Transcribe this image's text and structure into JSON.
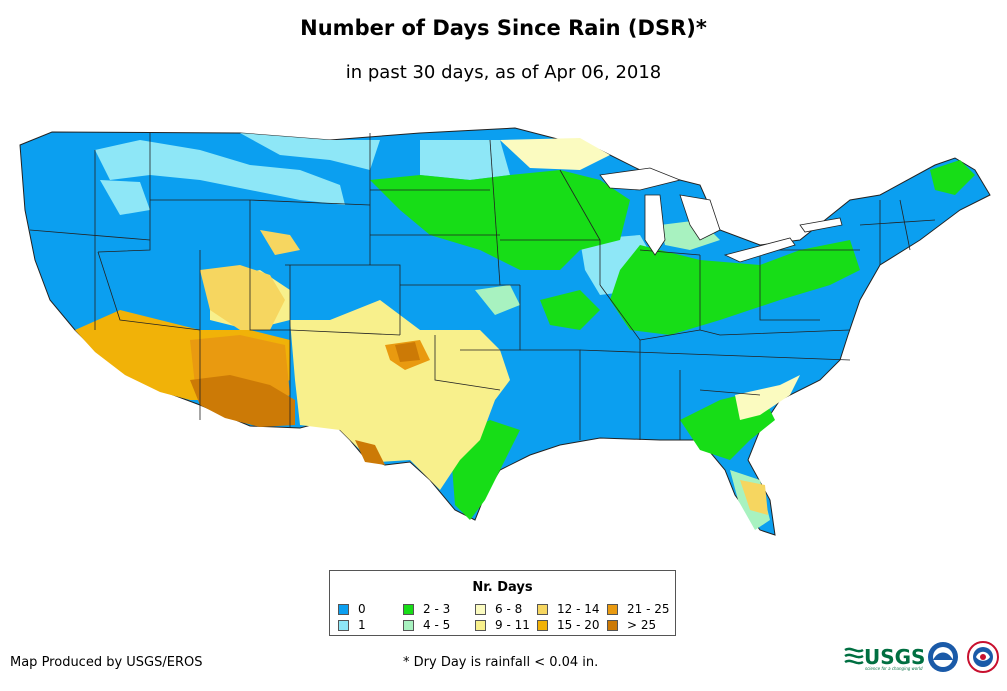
{
  "title": "Number of Days Since Rain (DSR)*",
  "subtitle": "in past 30 days, as of Apr 06, 2018",
  "legend": {
    "title": "Nr. Days",
    "items": [
      {
        "label": "0",
        "color": "#0b9ff0"
      },
      {
        "label": "1",
        "color": "#8ee7f7"
      },
      {
        "label": "2 - 3",
        "color": "#17dd17"
      },
      {
        "label": "4 - 5",
        "color": "#a8f2c0"
      },
      {
        "label": "6 - 8",
        "color": "#fbfbc0"
      },
      {
        "label": "9 - 11",
        "color": "#f8f08c"
      },
      {
        "label": "12 - 14",
        "color": "#f6d660"
      },
      {
        "label": "15 - 20",
        "color": "#f1b208"
      },
      {
        "label": "21 - 25",
        "color": "#e99a10"
      },
      {
        "label": "> 25",
        "color": "#cc7a06"
      }
    ]
  },
  "credit": "Map Produced by USGS/EROS",
  "footnote": "* Dry Day is rainfall < 0.04 in.",
  "logos": {
    "usgs": "USGS",
    "usgs_tagline": "science for a changing world",
    "noaa": "noaa-logo",
    "nws": "nws-logo"
  },
  "colors": {
    "background": "#ffffff",
    "border": "#333333"
  }
}
